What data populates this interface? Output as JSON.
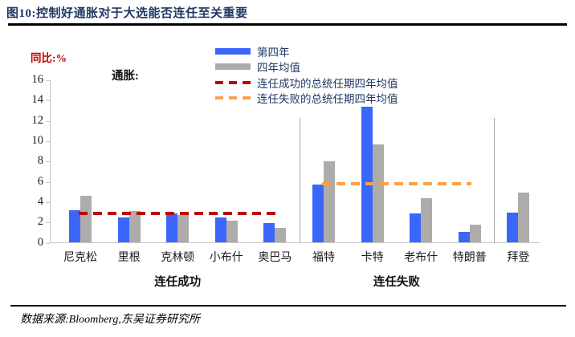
{
  "header": {
    "title": "图10:控制好通胀对于大选能否连任至关重要"
  },
  "chart": {
    "y_unit_label": "同比:%",
    "inner_label": "通胀:",
    "axis_color": "#c9c9c9",
    "separator_color": "#a9a6a6"
  },
  "chart_data": {
    "type": "bar",
    "title": "通胀:",
    "ylabel": "同比:%",
    "xlabel": "",
    "ylim": [
      0,
      16
    ],
    "ytick_step": 2,
    "grid": false,
    "legend_position": "top",
    "categories": [
      "尼克松",
      "里根",
      "克林顿",
      "小布什",
      "奥巴马",
      "福特",
      "卡特",
      "老布什",
      "特朗普",
      "拜登"
    ],
    "series": [
      {
        "name": "第四年",
        "color": "#3a66fa",
        "values": [
          3.2,
          2.5,
          2.9,
          2.5,
          1.9,
          5.7,
          13.4,
          2.9,
          1.1,
          3.0
        ]
      },
      {
        "name": "四年均值",
        "color": "#aeabab",
        "values": [
          4.6,
          3.1,
          2.7,
          2.2,
          1.5,
          8.0,
          9.7,
          4.4,
          1.8,
          4.9
        ]
      }
    ],
    "reference_lines": [
      {
        "name": "连任成功的总统任期四年均值",
        "value": 2.9,
        "style": "dashed",
        "color": "#c00000",
        "from_category": "尼克松",
        "to_category": "奥巴马"
      },
      {
        "name": "连任失败的总统任期四年均值",
        "value": 5.8,
        "style": "dashed",
        "color": "#f9a04b",
        "from_category": "福特",
        "to_category": "特朗普"
      }
    ],
    "group_labels": [
      {
        "label": "连任成功",
        "from_category": "尼克松",
        "to_category": "奥巴马"
      },
      {
        "label": "连任失败",
        "from_category": "福特",
        "to_category": "特朗普"
      }
    ],
    "separators_after": [
      "奥巴马",
      "特朗普"
    ]
  },
  "footer": {
    "source": "数据来源:Bloomberg,东吴证券研究所"
  }
}
